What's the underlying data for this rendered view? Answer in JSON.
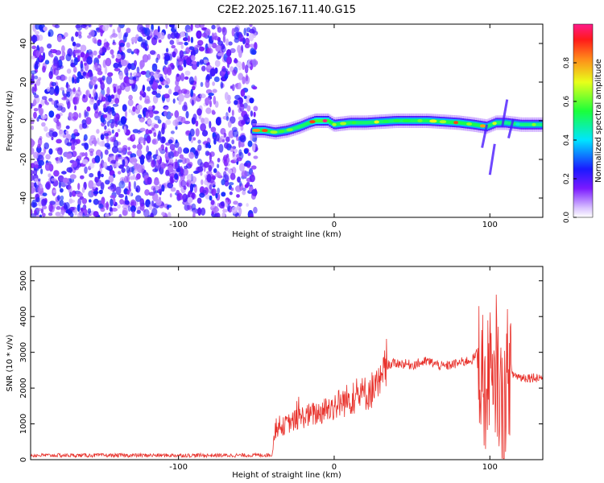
{
  "title": "C2E2.2025.167.11.40.G15",
  "colors": {
    "snr_line": "#e8312b",
    "noise": "#8a3fe8",
    "axis": "#000000"
  },
  "colorbar": {
    "label": "Normalized spectral amplitude",
    "range": [
      0,
      1
    ],
    "ticks": [
      "0.0",
      "0.2",
      "0.4",
      "0.6",
      "0.8"
    ]
  },
  "chart_data": [
    {
      "type": "heatmap",
      "xlabel": "Height of straight line (km)",
      "ylabel": "Frequency (Hz)",
      "xlim": [
        -195,
        134
      ],
      "ylim": [
        -50,
        50
      ],
      "xticks": [
        "-100",
        "0",
        "100"
      ],
      "yticks": [
        "-40",
        "-20",
        "0",
        "20",
        "40"
      ],
      "noise_region_x": [
        -195,
        -50
      ],
      "ridge": {
        "x": [
          -52,
          -45,
          -38,
          -30,
          -22,
          -16,
          -12,
          -8,
          -4,
          0,
          10,
          20,
          40,
          60,
          80,
          90,
          98,
          104,
          110,
          120,
          134
        ],
        "freq": [
          -5,
          -5,
          -6,
          -5,
          -3,
          -1,
          0,
          0,
          0,
          -2,
          -1,
          -1,
          0,
          0,
          -1,
          -2,
          -3,
          -1,
          -1,
          -2,
          -2
        ],
        "amplitude": [
          0.6,
          0.9,
          0.55,
          0.5,
          0.6,
          0.7,
          1.0,
          1.0,
          0.9,
          0.7,
          0.65,
          0.6,
          0.6,
          0.7,
          0.75,
          0.7,
          0.65,
          0.55,
          0.55,
          0.5,
          0.5
        ]
      }
    },
    {
      "type": "line",
      "xlabel": "Height of straight line (km)",
      "ylabel": "SNR (10 * v/v)",
      "xlim": [
        -195,
        134
      ],
      "ylim": [
        0,
        5400
      ],
      "xticks": [
        "-100",
        "0",
        "100"
      ],
      "yticks": [
        "0",
        "1000",
        "2000",
        "3000",
        "4000",
        "5000"
      ],
      "x": [
        -195,
        -150,
        -100,
        -60,
        -40,
        -38,
        -30,
        -20,
        -10,
        0,
        10,
        20,
        30,
        34,
        40,
        50,
        60,
        70,
        80,
        89,
        92,
        95,
        98,
        100,
        102,
        104,
        108,
        112,
        114,
        120,
        134
      ],
      "y": [
        120,
        120,
        120,
        120,
        130,
        800,
        1000,
        1200,
        1300,
        1500,
        1700,
        1850,
        2100,
        2650,
        2700,
        2650,
        2750,
        2600,
        2700,
        2800,
        3000,
        2500,
        1400,
        3200,
        1000,
        2800,
        1200,
        2600,
        2400,
        2300,
        2300
      ]
    }
  ]
}
